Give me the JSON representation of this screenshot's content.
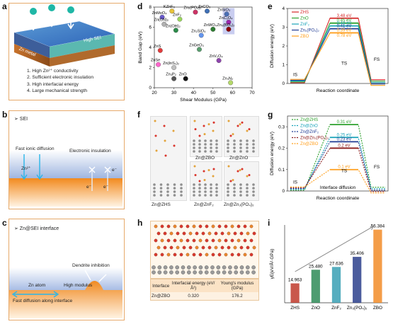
{
  "panels": {
    "a": {
      "label": "a",
      "layer_sei": "High SEI",
      "layer_metal": "Zn metal",
      "properties": [
        "1. High Zn²⁺ conductivity",
        "2. Sufficient electronic insulation",
        "3. High interfacial energy",
        "4. Large mechanical strength"
      ]
    },
    "b": {
      "label": "b",
      "header": "➢ SEI",
      "fast_ionic": "Fast ionic diffusion",
      "electronic_insulation": "Electronic insulation",
      "ion": "Zn²⁺",
      "electron": "e⁻"
    },
    "c": {
      "label": "c",
      "header": "➢ Zn@SEI interface",
      "dendrite": "Dendrite inhibition",
      "zn_atom": "Zn atom",
      "high_modulus": "High modulus",
      "fast_diffusion": "Fast diffusion along interface"
    },
    "f": {
      "label": "f",
      "structures": [
        "Zn@ZHS",
        "Zn@ZBO",
        "Zn@ZnO",
        "Zn@ZnF₂",
        "Zn@Zn₃(PO₄)₂"
      ]
    },
    "h": {
      "label": "h",
      "headers": [
        "Interface",
        "Interfacial energy (eV/Å²)",
        "Young's modulus (GPa)"
      ],
      "row": [
        "Zn@ZBO",
        "0.320",
        "176.2"
      ]
    }
  },
  "chart_data": [
    {
      "panel": "d",
      "type": "scatter",
      "xlabel": "Shear Modulus (GPa)",
      "ylabel": "Band Gap (eV)",
      "xlim": [
        20,
        70
      ],
      "ylim": [
        0,
        8
      ],
      "xticks": [
        20,
        30,
        40,
        50,
        60,
        70
      ],
      "yticks": [
        0,
        2,
        4,
        6,
        8
      ],
      "points": [
        {
          "label": "KZnF₃",
          "x": 29,
          "y": 7.6,
          "color": "#e8c23a"
        },
        {
          "label": "ZnMoO₄",
          "x": 24,
          "y": 7.0,
          "color": "#6a5acd"
        },
        {
          "label": "Zn(CN)₂",
          "x": 25,
          "y": 6.3,
          "color": "#b0b0b0"
        },
        {
          "label": "Zn(OH)₂",
          "x": 31,
          "y": 5.7,
          "color": "#2c8c4a"
        },
        {
          "label": "ZnF₂",
          "x": 33,
          "y": 6.8,
          "color": "#9ad65e"
        },
        {
          "label": "Zn₃(PO₄)₂",
          "x": 41,
          "y": 7.5,
          "color": "#cc3366"
        },
        {
          "label": "ZnCO₃",
          "x": 47,
          "y": 7.6,
          "color": "#3f6fb5"
        },
        {
          "label": "ZnWO₄",
          "x": 50,
          "y": 5.8,
          "color": "#2e7d32"
        },
        {
          "label": "Zn₂SiO₄",
          "x": 44,
          "y": 5.2,
          "color": "#6495ed"
        },
        {
          "label": "ZnSiO₃",
          "x": 57,
          "y": 7.3,
          "color": "#4a6fb5"
        },
        {
          "label": "ZnC₂O₄",
          "x": 58,
          "y": 6.5,
          "color": "#9c27b0"
        },
        {
          "label": "Zn₃(BO₃)₂",
          "x": 58,
          "y": 5.8,
          "color": "#8b0000"
        },
        {
          "label": "ZnS",
          "x": 23,
          "y": 3.7,
          "color": "#e23b3b"
        },
        {
          "label": "ZnGeO₃",
          "x": 43,
          "y": 3.8,
          "color": "#5a9e6f"
        },
        {
          "label": "ZnV₂O₄",
          "x": 53,
          "y": 2.7,
          "color": "#8e44ad"
        },
        {
          "label": "ZnSe",
          "x": 22,
          "y": 2.3,
          "color": "#ff66cc"
        },
        {
          "label": "Zn(InS₂)₂",
          "x": 30,
          "y": 2.0,
          "color": "#c0c0c0"
        },
        {
          "label": "Zn₃P₂",
          "x": 30,
          "y": 0.9,
          "color": "#555555"
        },
        {
          "label": "ZnO",
          "x": 36,
          "y": 0.9,
          "color": "#111111"
        },
        {
          "label": "Zn₃N₂",
          "x": 59,
          "y": 0.5,
          "color": "#b5d96a"
        }
      ]
    },
    {
      "panel": "e",
      "type": "line",
      "title": "",
      "xlabel": "Reaction coordinate",
      "ylabel": "Diffusion energy (eV)",
      "ylim": [
        0,
        4
      ],
      "yticks": [
        0,
        1,
        2,
        3,
        4
      ],
      "states": [
        "IS",
        "TS",
        "FS"
      ],
      "series": [
        {
          "name": "ZHS",
          "value": 3.48,
          "label": "3.48 eV",
          "color": "#d62728"
        },
        {
          "name": "ZnO",
          "value": 3.22,
          "label": "0.45 eV",
          "color": "#2ca02c"
        },
        {
          "name": "ZnF₂",
          "value": 3.07,
          "label": "0.44 eV",
          "color": "#17a2b8"
        },
        {
          "name": "Zn₃(PO₄)₂",
          "value": 2.92,
          "label": "0.41 eV",
          "color": "#1f3a93"
        },
        {
          "name": "ZBO",
          "value": 2.7,
          "label": "0.39 eV",
          "color": "#ff9f1c"
        }
      ],
      "extra_label": "0.78 eV"
    },
    {
      "panel": "g",
      "type": "line",
      "xlabel": "Reaction coordinate",
      "ylabel": "Diffusion energy (eV)",
      "ylim": [
        0,
        0.35
      ],
      "yticks": [
        0.0,
        0.1,
        0.2,
        0.3
      ],
      "states": [
        "IS",
        "TS",
        "FS"
      ],
      "annotation": "Interface diffusion",
      "series": [
        {
          "name": "Zn@ZHS",
          "value": 0.31,
          "label": "0.31 eV",
          "color": "#2ca02c"
        },
        {
          "name": "Zn@ZnO",
          "value": 0.25,
          "label": "0.25 eV",
          "color": "#17a2b8"
        },
        {
          "name": "Zn@ZnF₂",
          "value": 0.23,
          "label": "0.23 eV",
          "color": "#1f3a93"
        },
        {
          "name": "Zn@Zn₃(PO₄)₂",
          "value": 0.2,
          "label": "0.2 eV",
          "color": "#8b1a1a"
        },
        {
          "name": "Zn@ZBO",
          "value": 0.1,
          "label": "0.1 eV",
          "color": "#ff9f1c"
        }
      ]
    },
    {
      "panel": "i",
      "type": "bar",
      "ylabel": "γE(eV/Å²·GPa)",
      "categories": [
        "ZHS",
        "ZnO",
        "ZnF₂",
        "Zn₃(PO₄)₂",
        "ZBO"
      ],
      "values": [
        14.963,
        25.48,
        27.636,
        35.406,
        56.384
      ],
      "value_labels": [
        "14.963",
        "25.480",
        "27.636",
        "35.406",
        "56.384"
      ],
      "colors": [
        "#c0392b",
        "#2e8b57",
        "#3aa0b4",
        "#2b3f8c",
        "#f28c28"
      ],
      "ylim": [
        0,
        60
      ]
    }
  ]
}
